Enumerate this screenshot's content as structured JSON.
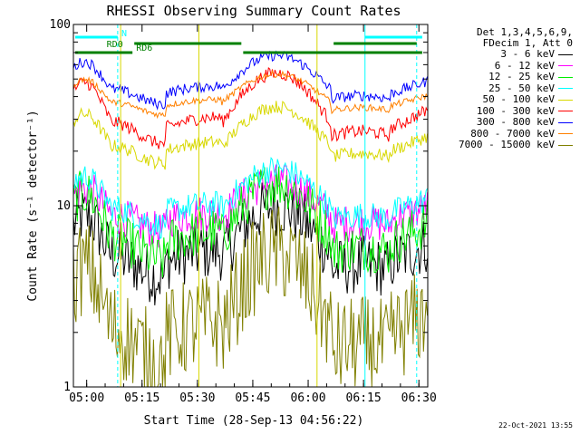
{
  "chart_data": {
    "type": "line",
    "title": "RHESSI Observing Summary Count Rates",
    "xlabel": "Start Time (28-Sep-13 04:56:22)",
    "ylabel": "Count Rate (s⁻¹ detector⁻¹)",
    "yscale": "log",
    "ylim": [
      1,
      100
    ],
    "xlim_minutes": [
      0,
      96
    ],
    "x_ticks": [
      "05:00",
      "05:15",
      "05:30",
      "05:45",
      "06:00",
      "06:15",
      "06:30"
    ],
    "y_ticks": [
      "1",
      "10",
      "100"
    ],
    "grid": false,
    "legend_header": [
      "Det 1,3,4,5,6,9,",
      "FDecim 1, Att 0"
    ],
    "legend_position": "right",
    "series": [
      {
        "name": "3 - 6 keV",
        "color": "#000000"
      },
      {
        "name": "6 - 12 keV",
        "color": "#ff00ff"
      },
      {
        "name": "12 - 25 keV",
        "color": "#00ee00"
      },
      {
        "name": "25 - 50 keV",
        "color": "#00ffff"
      },
      {
        "name": "50 - 100 keV",
        "color": "#d8d800"
      },
      {
        "name": "100 - 300 keV",
        "color": "#ff0000"
      },
      {
        "name": "300 - 800 keV",
        "color": "#0000ff"
      },
      {
        "name": "800 - 7000 keV",
        "color": "#ff8000"
      },
      {
        "name": "7000 - 15000 keV",
        "color": "#808000"
      }
    ],
    "annotations": [
      {
        "label": "N",
        "color": "#00ffff"
      },
      {
        "label": "RD0",
        "color": "#008000"
      },
      {
        "label": "RD6",
        "color": "#008000"
      }
    ]
  },
  "footer_timestamp": "22-Oct-2021 13:55"
}
